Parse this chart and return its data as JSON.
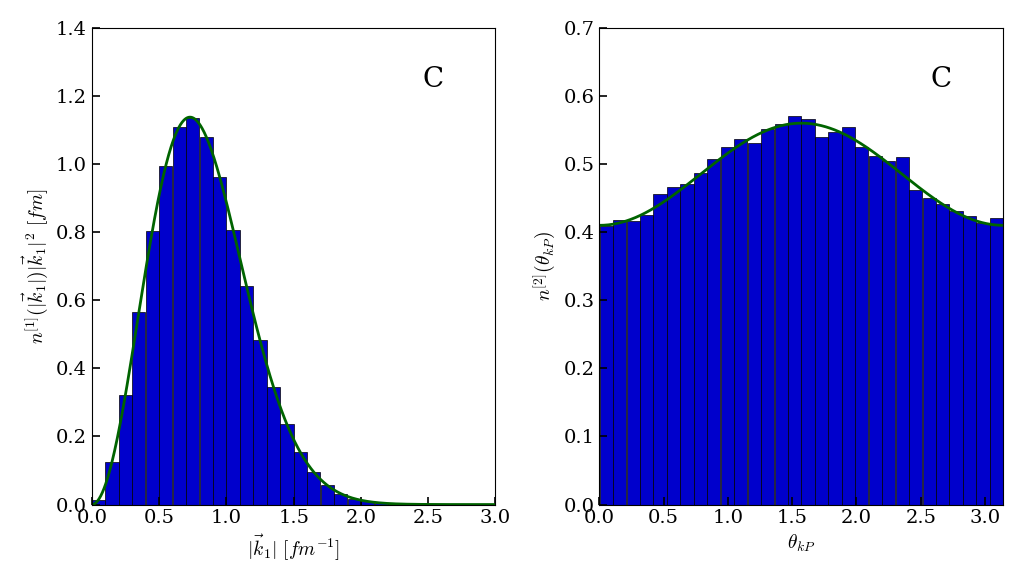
{
  "left_plot": {
    "xlabel": "$|\\vec{k}_1|$ $[fm^{-1}]$",
    "ylabel": "$n^{[1]}(|\\vec{k}_1|)|\\vec{k}_1|^2$ $[fm]$",
    "xlim": [
      0.0,
      3.0
    ],
    "ylim": [
      0.0,
      1.4
    ],
    "xticks": [
      0.0,
      0.5,
      1.0,
      1.5,
      2.0,
      2.5,
      3.0
    ],
    "yticks": [
      0.0,
      0.2,
      0.4,
      0.6,
      0.8,
      1.0,
      1.2,
      1.4
    ],
    "label": "C",
    "hist_color": "#0000cc",
    "curve_color": "#006400",
    "n_bins": 30,
    "hist_range": [
      0.0,
      3.0
    ],
    "maxwell_b": 0.516,
    "maxwell_peak_scale": 1.245
  },
  "right_plot": {
    "xlabel": "$\\theta_{kP}$",
    "ylabel": "$n^{[2]}(\\theta_{kP})$",
    "xlim": [
      0.0,
      3.14159265
    ],
    "ylim": [
      0.0,
      0.7
    ],
    "xticks": [
      0.0,
      0.5,
      1.0,
      1.5,
      2.0,
      2.5,
      3.0
    ],
    "yticks": [
      0.0,
      0.1,
      0.2,
      0.3,
      0.4,
      0.5,
      0.6,
      0.7
    ],
    "label": "C",
    "hist_color": "#0000cc",
    "curve_color": "#006400",
    "n_bins": 30,
    "hist_range": [
      0.0,
      3.14159265
    ],
    "curve_A": 0.41,
    "curve_B": 0.15
  },
  "background_color": "#ffffff",
  "tick_fontsize": 14,
  "label_fontsize": 14,
  "annotation_fontsize": 20,
  "curve_linewidth": 2.0
}
